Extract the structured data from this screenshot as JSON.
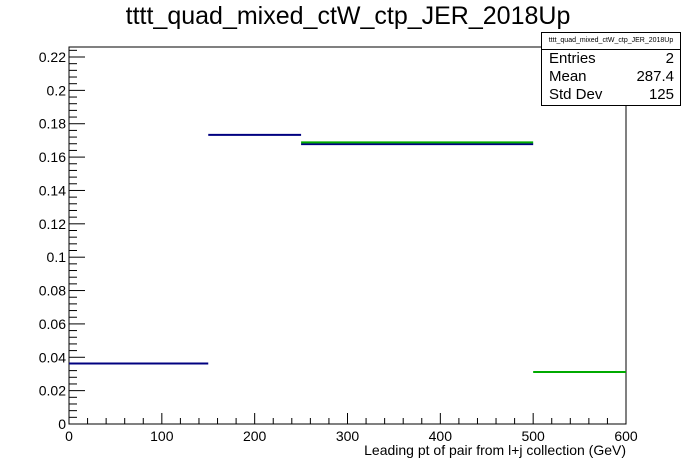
{
  "chart_data": {
    "type": "histogram",
    "title": "tttt_quad_mixed_ctW_ctp_JER_2018Up",
    "xlabel": "Leading pt of pair from l+j collection (GeV)",
    "ylabel": "",
    "xlim": [
      0,
      600
    ],
    "ylim": [
      0,
      0.226
    ],
    "xticks": [
      0,
      100,
      200,
      300,
      400,
      500,
      600
    ],
    "yticks": [
      0,
      0.02,
      0.04,
      0.06,
      0.08,
      0.1,
      0.12,
      0.14,
      0.16,
      0.18,
      0.2,
      0.22
    ],
    "ytick_labels": [
      "0",
      "0.02",
      "0.04",
      "0.06",
      "0.08",
      "0.1",
      "0.12",
      "0.14",
      "0.16",
      "0.18",
      "0.2",
      "0.22"
    ],
    "grid": false,
    "series": [
      {
        "color": "#000080",
        "bins": [
          {
            "x0": 0,
            "x1": 150,
            "y": 0.0363
          },
          {
            "x0": 150,
            "x1": 250,
            "y": 0.1733
          },
          {
            "x0": 250,
            "x1": 500,
            "y": 0.1678
          }
        ]
      },
      {
        "color": "#00aa00",
        "bins": [
          {
            "x0": 250,
            "x1": 500,
            "y": 0.1688
          },
          {
            "x0": 500,
            "x1": 600,
            "y": 0.0312
          }
        ]
      }
    ],
    "stats": {
      "title": "tttt_quad_mixed_ctW_ctp_JER_2018Up",
      "rows": [
        {
          "label": "Entries",
          "value": "2"
        },
        {
          "label": "Mean",
          "value": "287.4"
        },
        {
          "label": "Std Dev",
          "value": "125"
        }
      ]
    }
  }
}
